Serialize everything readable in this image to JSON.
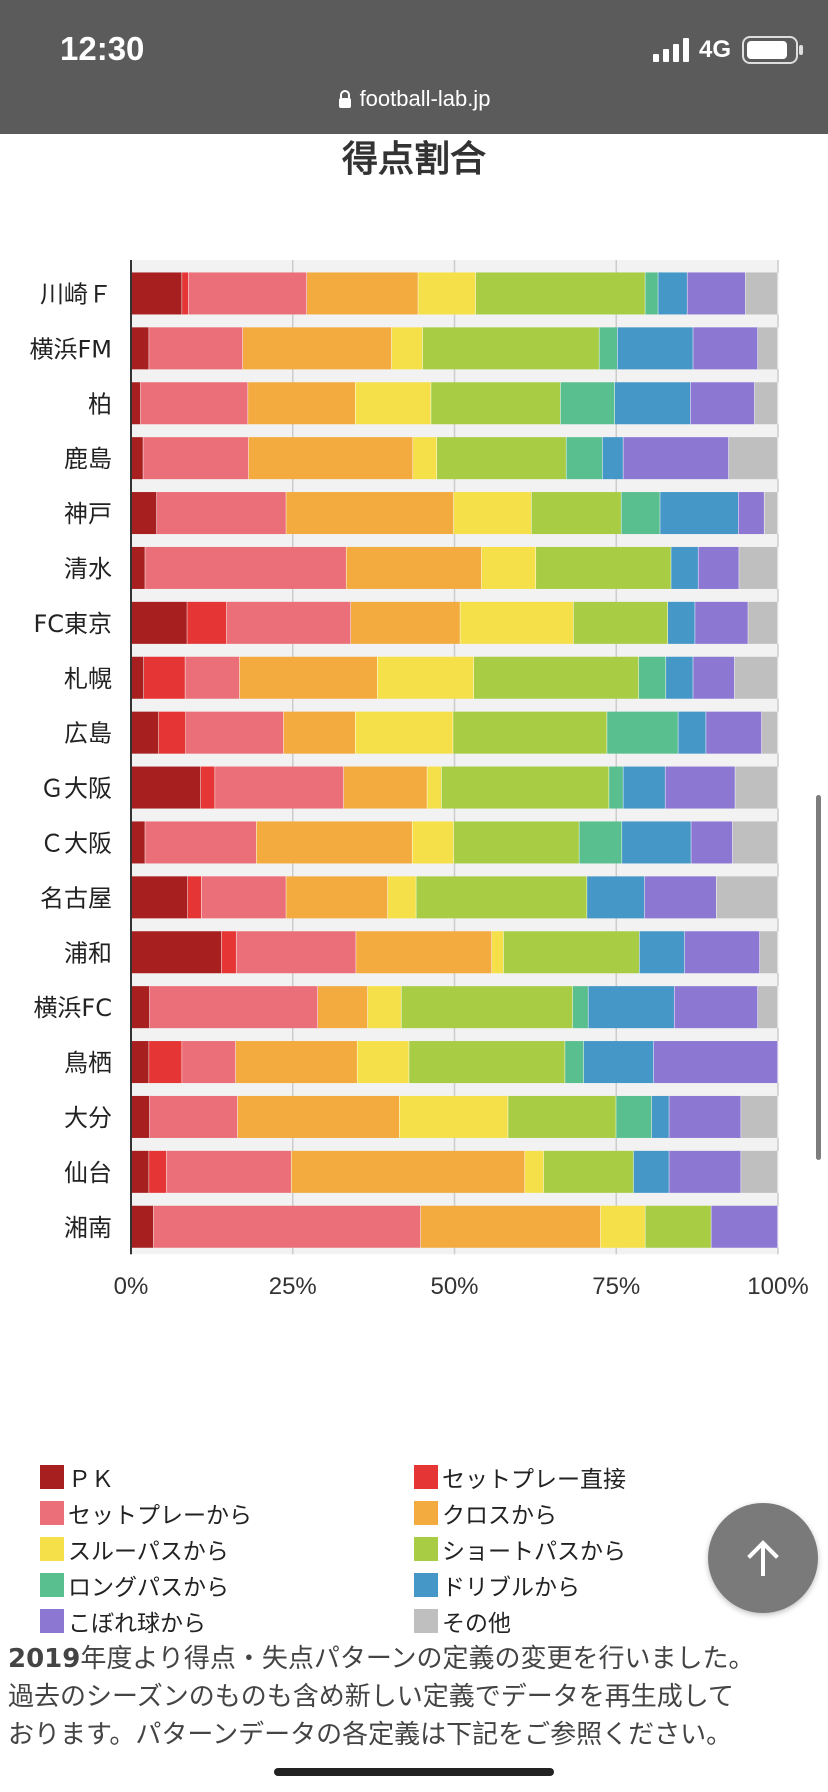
{
  "status_bar": {
    "time": "12:30",
    "network": "4G",
    "url": "football-lab.jp"
  },
  "chart_data": {
    "type": "bar",
    "orientation": "horizontal",
    "stacked": true,
    "title": "得点割合",
    "xlim": [
      0,
      100
    ],
    "x_ticks": [
      "0%",
      "25%",
      "50%",
      "75%",
      "100%"
    ],
    "grid": true,
    "categories": [
      "川崎Ｆ",
      "横浜FM",
      "柏",
      "鹿島",
      "神戸",
      "清水",
      "FC東京",
      "札幌",
      "広島",
      "Ｇ大阪",
      "Ｃ大阪",
      "名古屋",
      "浦和",
      "横浜FC",
      "鳥栖",
      "大分",
      "仙台",
      "湘南"
    ],
    "series": [
      {
        "name": "ＰＫ",
        "color": "#a81f1f",
        "values": [
          7.9,
          2.8,
          1.5,
          1.9,
          4.0,
          2.2,
          8.7,
          2.0,
          4.3,
          10.8,
          2.2,
          8.8,
          14.0,
          2.9,
          2.8,
          2.9,
          2.8,
          3.5
        ]
      },
      {
        "name": "セットプレー直接",
        "color": "#e53535",
        "values": [
          1.0,
          0,
          0,
          0,
          0,
          0,
          6.1,
          6.4,
          4.2,
          2.2,
          0,
          2.1,
          2.3,
          0,
          5.1,
          0,
          2.7,
          0
        ]
      },
      {
        "name": "セットプレーから",
        "color": "#eb6f78",
        "values": [
          18.3,
          14.5,
          16.6,
          16.3,
          20.0,
          31.1,
          19.2,
          8.4,
          15.1,
          19.9,
          17.2,
          13.1,
          18.5,
          26.0,
          8.3,
          13.6,
          19.3,
          41.3
        ]
      },
      {
        "name": "クロスから",
        "color": "#f3ab3f",
        "values": [
          17.2,
          23.0,
          16.6,
          25.4,
          25.9,
          20.9,
          16.9,
          21.3,
          11.1,
          12.9,
          24.1,
          15.7,
          21.0,
          7.7,
          18.8,
          25.0,
          36.1,
          27.8
        ]
      },
      {
        "name": "スルーパスから",
        "color": "#f5e04a",
        "values": [
          8.9,
          4.8,
          11.7,
          3.7,
          12.0,
          8.4,
          17.5,
          14.9,
          15.1,
          2.2,
          6.4,
          4.4,
          1.8,
          5.2,
          8.0,
          16.8,
          2.9,
          6.9
        ]
      },
      {
        "name": "ショートパスから",
        "color": "#a8cd45",
        "values": [
          26.2,
          27.3,
          20.0,
          20.0,
          13.9,
          20.9,
          14.6,
          25.5,
          23.8,
          25.9,
          19.4,
          26.4,
          21.0,
          26.5,
          24.1,
          16.7,
          13.9,
          10.2
        ]
      },
      {
        "name": "ロングパスから",
        "color": "#5abf8f",
        "values": [
          2.0,
          2.8,
          8.4,
          5.6,
          6.0,
          0,
          0,
          4.2,
          11.0,
          2.2,
          6.6,
          0,
          0,
          2.4,
          2.9,
          5.5,
          0,
          0
        ]
      },
      {
        "name": "ドリブルから",
        "color": "#4597c8",
        "values": [
          4.5,
          11.7,
          11.7,
          3.2,
          12.1,
          4.2,
          4.2,
          4.2,
          4.3,
          6.5,
          10.7,
          8.9,
          7.0,
          13.3,
          10.8,
          2.7,
          5.5,
          0
        ]
      },
      {
        "name": "こぼれ球から",
        "color": "#8c78d3",
        "values": [
          9.0,
          10.0,
          9.9,
          16.3,
          4.0,
          6.3,
          8.2,
          6.4,
          8.6,
          10.8,
          6.4,
          11.1,
          11.6,
          12.9,
          19.2,
          11.1,
          11.1,
          10.3
        ]
      },
      {
        "name": "その他",
        "color": "#bfbfbf",
        "values": [
          5.0,
          3.1,
          3.6,
          7.6,
          2.1,
          6.0,
          4.6,
          6.7,
          2.5,
          6.6,
          7.0,
          9.5,
          2.8,
          3.1,
          0,
          5.7,
          5.7,
          0
        ]
      }
    ]
  },
  "fab": {
    "icon": "arrow-up-icon"
  },
  "note": {
    "year": "2019",
    "line1_rest": "年度より得点・失点パターンの定義の変更を行いました。",
    "line2": "過去のシーズンのものも含め新しい定義でデータを再生成して",
    "line3": "おります。パターンデータの各定義は下記をご参照ください。"
  }
}
